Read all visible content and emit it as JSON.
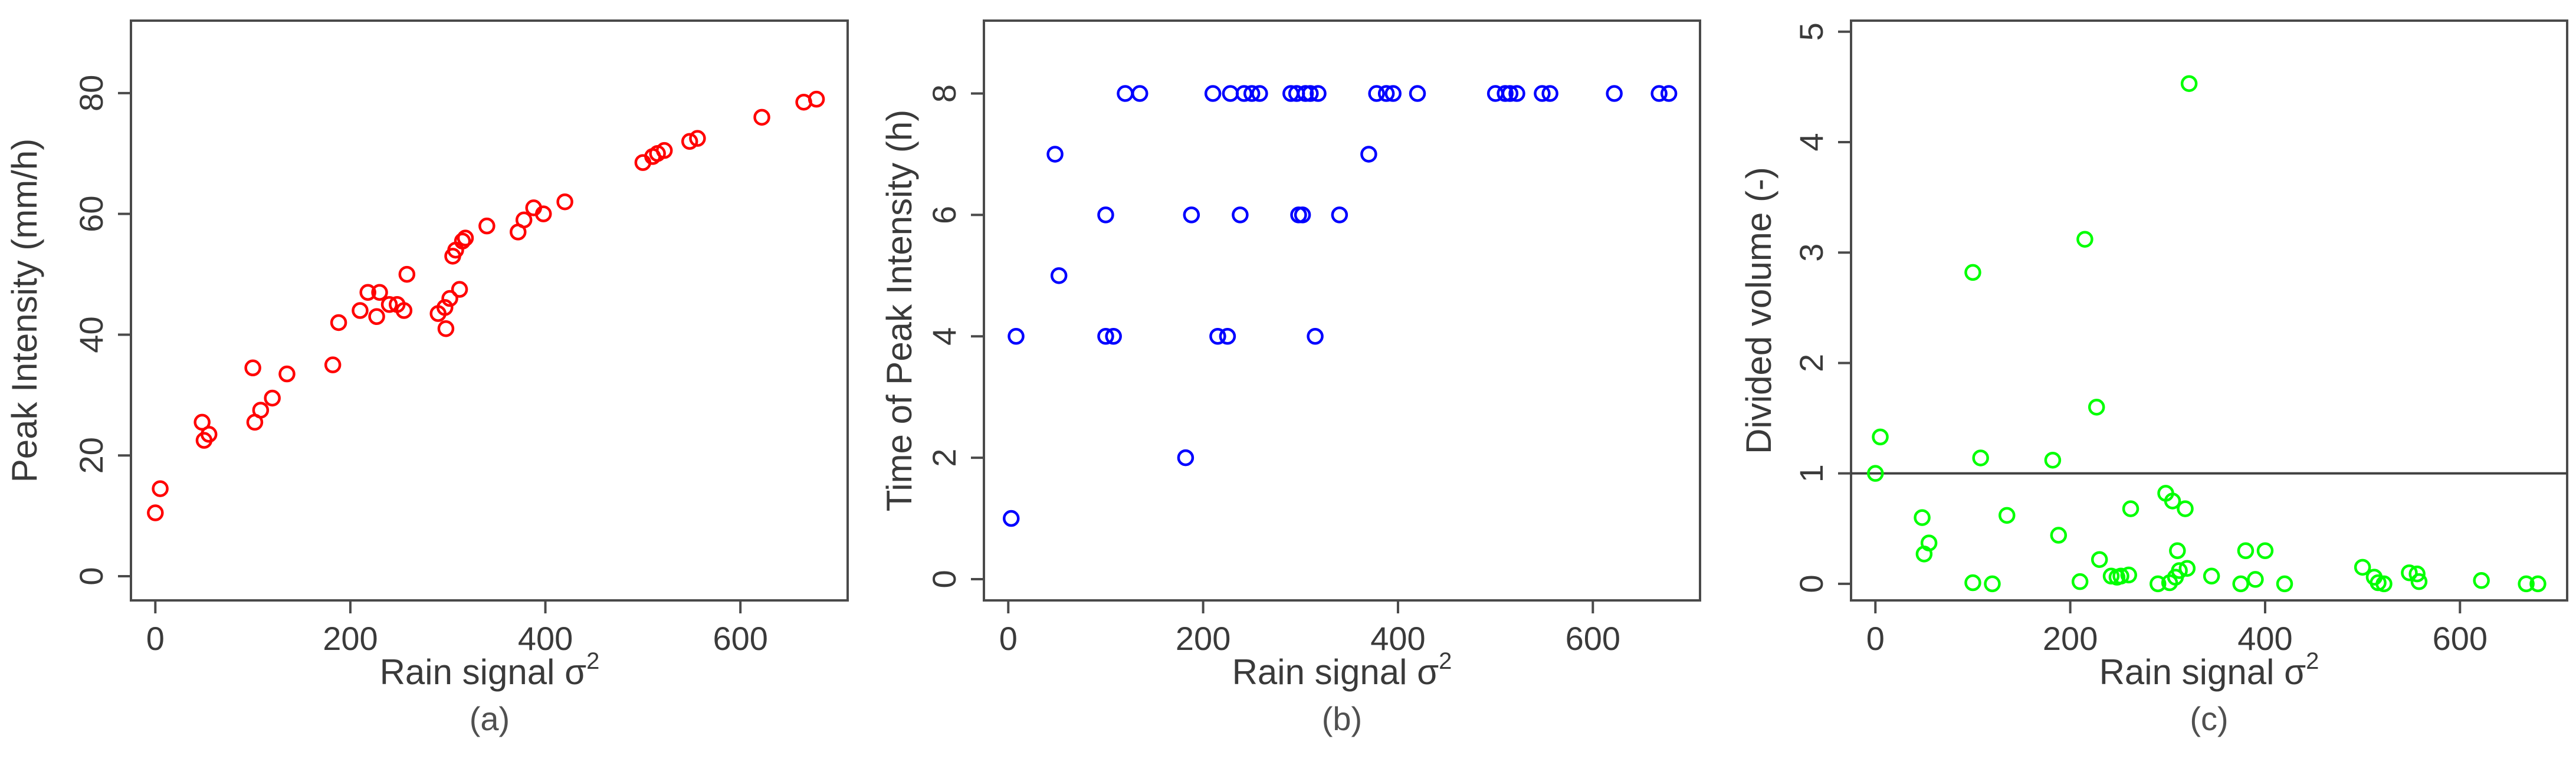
{
  "chart_data": [
    {
      "type": "scatter",
      "panel_label": "(a)",
      "xlabel": "Rain signal σ",
      "xlabel_sup": "2",
      "ylabel": "Peak Intensity (mm/h)",
      "xlim": [
        -25,
        710
      ],
      "ylim": [
        -4,
        92
      ],
      "xticks": [
        0,
        200,
        400,
        600
      ],
      "yticks": [
        0,
        20,
        40,
        60,
        80
      ],
      "marker_color": "#ff0000",
      "points": [
        {
          "x": 0,
          "y": 10.5
        },
        {
          "x": 5,
          "y": 14.5
        },
        {
          "x": 48,
          "y": 25.5
        },
        {
          "x": 50,
          "y": 22.5
        },
        {
          "x": 55,
          "y": 23.5
        },
        {
          "x": 100,
          "y": 34.5
        },
        {
          "x": 102,
          "y": 25.5
        },
        {
          "x": 108,
          "y": 27.5
        },
        {
          "x": 120,
          "y": 29.5
        },
        {
          "x": 135,
          "y": 33.5
        },
        {
          "x": 182,
          "y": 35
        },
        {
          "x": 188,
          "y": 42
        },
        {
          "x": 210,
          "y": 44
        },
        {
          "x": 218,
          "y": 47
        },
        {
          "x": 227,
          "y": 43
        },
        {
          "x": 230,
          "y": 47
        },
        {
          "x": 240,
          "y": 45
        },
        {
          "x": 248,
          "y": 45
        },
        {
          "x": 255,
          "y": 44
        },
        {
          "x": 258,
          "y": 50
        },
        {
          "x": 290,
          "y": 43.5
        },
        {
          "x": 297,
          "y": 44.5
        },
        {
          "x": 298,
          "y": 41
        },
        {
          "x": 302,
          "y": 46
        },
        {
          "x": 305,
          "y": 53
        },
        {
          "x": 308,
          "y": 54
        },
        {
          "x": 312,
          "y": 47.5
        },
        {
          "x": 315,
          "y": 55.5
        },
        {
          "x": 318,
          "y": 56
        },
        {
          "x": 340,
          "y": 58
        },
        {
          "x": 372,
          "y": 57
        },
        {
          "x": 378,
          "y": 59
        },
        {
          "x": 388,
          "y": 61
        },
        {
          "x": 398,
          "y": 60
        },
        {
          "x": 420,
          "y": 62
        },
        {
          "x": 500,
          "y": 68.5
        },
        {
          "x": 510,
          "y": 69.5
        },
        {
          "x": 515,
          "y": 70
        },
        {
          "x": 522,
          "y": 70.5
        },
        {
          "x": 548,
          "y": 72
        },
        {
          "x": 556,
          "y": 72.5
        },
        {
          "x": 622,
          "y": 76
        },
        {
          "x": 665,
          "y": 78.5
        },
        {
          "x": 678,
          "y": 79
        }
      ]
    },
    {
      "type": "scatter",
      "panel_label": "(b)",
      "xlabel": "Rain signal σ",
      "xlabel_sup": "2",
      "ylabel": "Time of Peak Intensity (h)",
      "xlim": [
        -25,
        710
      ],
      "ylim": [
        -0.35,
        9.2
      ],
      "xticks": [
        0,
        200,
        400,
        600
      ],
      "yticks": [
        0,
        2,
        4,
        6,
        8
      ],
      "marker_color": "#0000ff",
      "points": [
        {
          "x": 3,
          "y": 1
        },
        {
          "x": 8,
          "y": 4
        },
        {
          "x": 48,
          "y": 7
        },
        {
          "x": 52,
          "y": 5
        },
        {
          "x": 100,
          "y": 6
        },
        {
          "x": 100,
          "y": 4
        },
        {
          "x": 108,
          "y": 4
        },
        {
          "x": 120,
          "y": 8
        },
        {
          "x": 135,
          "y": 8
        },
        {
          "x": 182,
          "y": 2
        },
        {
          "x": 188,
          "y": 6
        },
        {
          "x": 210,
          "y": 8
        },
        {
          "x": 215,
          "y": 4
        },
        {
          "x": 225,
          "y": 4
        },
        {
          "x": 228,
          "y": 8
        },
        {
          "x": 238,
          "y": 6
        },
        {
          "x": 242,
          "y": 8
        },
        {
          "x": 250,
          "y": 8
        },
        {
          "x": 258,
          "y": 8
        },
        {
          "x": 290,
          "y": 8
        },
        {
          "x": 296,
          "y": 8
        },
        {
          "x": 298,
          "y": 6
        },
        {
          "x": 302,
          "y": 6
        },
        {
          "x": 305,
          "y": 8
        },
        {
          "x": 310,
          "y": 8
        },
        {
          "x": 315,
          "y": 4
        },
        {
          "x": 318,
          "y": 8
        },
        {
          "x": 340,
          "y": 6
        },
        {
          "x": 370,
          "y": 7
        },
        {
          "x": 378,
          "y": 8
        },
        {
          "x": 388,
          "y": 8
        },
        {
          "x": 395,
          "y": 8
        },
        {
          "x": 420,
          "y": 8
        },
        {
          "x": 500,
          "y": 8
        },
        {
          "x": 510,
          "y": 8
        },
        {
          "x": 515,
          "y": 8
        },
        {
          "x": 522,
          "y": 8
        },
        {
          "x": 548,
          "y": 8
        },
        {
          "x": 556,
          "y": 8
        },
        {
          "x": 622,
          "y": 8
        },
        {
          "x": 668,
          "y": 8
        },
        {
          "x": 678,
          "y": 8
        }
      ]
    },
    {
      "type": "scatter",
      "panel_label": "(c)",
      "xlabel": "Rain signal σ",
      "xlabel_sup": "2",
      "ylabel": "Divided volume (-)",
      "xlim": [
        -25,
        710
      ],
      "ylim": [
        -0.15,
        5.1
      ],
      "xticks": [
        0,
        200,
        400,
        600
      ],
      "yticks": [
        0,
        1,
        2,
        3,
        4,
        5
      ],
      "reference_line_y": 1,
      "marker_color": "#00ff00",
      "points": [
        {
          "x": 0,
          "y": 1.0
        },
        {
          "x": 5,
          "y": 1.33
        },
        {
          "x": 48,
          "y": 0.6
        },
        {
          "x": 50,
          "y": 0.27
        },
        {
          "x": 55,
          "y": 0.37
        },
        {
          "x": 100,
          "y": 2.82
        },
        {
          "x": 100,
          "y": 0.01
        },
        {
          "x": 108,
          "y": 1.14
        },
        {
          "x": 120,
          "y": 0.0
        },
        {
          "x": 135,
          "y": 0.62
        },
        {
          "x": 182,
          "y": 1.12
        },
        {
          "x": 188,
          "y": 0.44
        },
        {
          "x": 210,
          "y": 0.02
        },
        {
          "x": 215,
          "y": 3.12
        },
        {
          "x": 227,
          "y": 1.6
        },
        {
          "x": 230,
          "y": 0.22
        },
        {
          "x": 242,
          "y": 0.07
        },
        {
          "x": 248,
          "y": 0.06
        },
        {
          "x": 252,
          "y": 0.07
        },
        {
          "x": 260,
          "y": 0.08
        },
        {
          "x": 262,
          "y": 0.68
        },
        {
          "x": 290,
          "y": 0.0
        },
        {
          "x": 298,
          "y": 0.82
        },
        {
          "x": 302,
          "y": 0.01
        },
        {
          "x": 305,
          "y": 0.75
        },
        {
          "x": 308,
          "y": 0.06
        },
        {
          "x": 310,
          "y": 0.3
        },
        {
          "x": 312,
          "y": 0.12
        },
        {
          "x": 318,
          "y": 0.68
        },
        {
          "x": 320,
          "y": 0.14
        },
        {
          "x": 322,
          "y": 4.53
        },
        {
          "x": 345,
          "y": 0.07
        },
        {
          "x": 375,
          "y": 0.0
        },
        {
          "x": 380,
          "y": 0.3
        },
        {
          "x": 390,
          "y": 0.04
        },
        {
          "x": 400,
          "y": 0.3
        },
        {
          "x": 420,
          "y": 0.0
        },
        {
          "x": 500,
          "y": 0.15
        },
        {
          "x": 512,
          "y": 0.06
        },
        {
          "x": 516,
          "y": 0.01
        },
        {
          "x": 522,
          "y": 0.0
        },
        {
          "x": 548,
          "y": 0.1
        },
        {
          "x": 556,
          "y": 0.09
        },
        {
          "x": 558,
          "y": 0.02
        },
        {
          "x": 622,
          "y": 0.03
        },
        {
          "x": 668,
          "y": 0.0
        },
        {
          "x": 680,
          "y": 0.0
        }
      ]
    }
  ]
}
